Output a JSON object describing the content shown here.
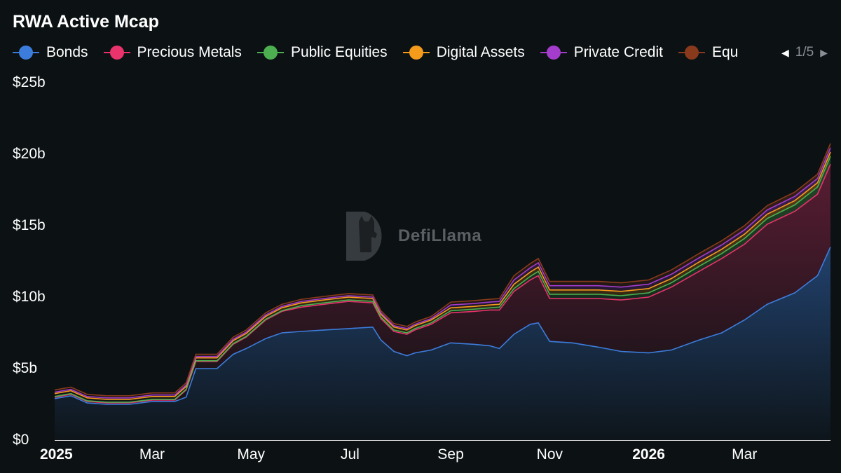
{
  "title": "RWA Active Mcap",
  "legend": {
    "items": [
      {
        "label": "Bonds",
        "color": "#3c7ddc"
      },
      {
        "label": "Precious Metals",
        "color": "#e8336d"
      },
      {
        "label": "Public Equities",
        "color": "#4caf50"
      },
      {
        "label": "Digital Assets",
        "color": "#f59b1c"
      },
      {
        "label": "Private Credit",
        "color": "#a43ccc"
      },
      {
        "label": "Equ",
        "color": "#8a3a1c"
      }
    ],
    "page_indicator": "1/5",
    "prev_icon": "triangle-left-icon",
    "next_icon": "triangle-right-icon"
  },
  "watermark": {
    "text": "DefiLlama",
    "icon": "llama-logo-icon"
  },
  "chart_data": {
    "type": "area",
    "stacked": true,
    "title": "RWA Active Mcap",
    "x_tick_labels": [
      {
        "label": "2025",
        "bold": true,
        "date": "2025-01-01"
      },
      {
        "label": "Mar",
        "bold": false,
        "date": "2025-03-01"
      },
      {
        "label": "May",
        "bold": false,
        "date": "2025-05-01"
      },
      {
        "label": "Jul",
        "bold": false,
        "date": "2025-07-01"
      },
      {
        "label": "Sep",
        "bold": false,
        "date": "2025-09-01"
      },
      {
        "label": "Nov",
        "bold": false,
        "date": "2025-11-01"
      },
      {
        "label": "2026",
        "bold": true,
        "date": "2026-01-01"
      },
      {
        "label": "Mar",
        "bold": false,
        "date": "2026-03-01"
      }
    ],
    "y_tick_labels": [
      "$0",
      "$5b",
      "$10b",
      "$15b",
      "$20b",
      "$25b"
    ],
    "y_ticks": [
      0,
      5,
      10,
      15,
      20,
      25
    ],
    "ylim": [
      0,
      25
    ],
    "y_unit": "billion USD",
    "x_range": [
      "2024-12-31",
      "2026-04-23"
    ],
    "grid": false,
    "legend_position": "top",
    "x": [
      "2024-12-31",
      "2025-01-10",
      "2025-01-20",
      "2025-02-01",
      "2025-02-15",
      "2025-03-01",
      "2025-03-15",
      "2025-03-22",
      "2025-03-28",
      "2025-04-10",
      "2025-04-20",
      "2025-04-28",
      "2025-05-10",
      "2025-05-20",
      "2025-06-01",
      "2025-06-15",
      "2025-06-30",
      "2025-07-15",
      "2025-07-20",
      "2025-07-28",
      "2025-08-05",
      "2025-08-10",
      "2025-08-20",
      "2025-09-01",
      "2025-09-15",
      "2025-09-25",
      "2025-10-01",
      "2025-10-10",
      "2025-10-20",
      "2025-10-25",
      "2025-11-01",
      "2025-11-15",
      "2025-12-01",
      "2025-12-15",
      "2026-01-01",
      "2026-01-15",
      "2026-02-01",
      "2026-02-15",
      "2026-03-01",
      "2026-03-15",
      "2026-04-01",
      "2026-04-15",
      "2026-04-23"
    ],
    "series": [
      {
        "name": "Bonds",
        "color": "#3c7ddc",
        "values": [
          2.9,
          3.1,
          2.6,
          2.5,
          2.5,
          2.7,
          2.7,
          3.0,
          5.0,
          5.0,
          6.0,
          6.4,
          7.1,
          7.5,
          7.6,
          7.7,
          7.8,
          7.9,
          7.0,
          6.2,
          5.9,
          6.1,
          6.3,
          6.8,
          6.7,
          6.6,
          6.4,
          7.4,
          8.1,
          8.2,
          6.9,
          6.8,
          6.5,
          6.2,
          6.1,
          6.3,
          7.0,
          7.5,
          8.4,
          9.5,
          10.3,
          11.5,
          13.5
        ]
      },
      {
        "name": "Precious Metals",
        "color": "#e8336d",
        "values": [
          0.1,
          0.1,
          0.1,
          0.1,
          0.1,
          0.1,
          0.1,
          0.5,
          0.5,
          0.5,
          0.7,
          0.8,
          1.3,
          1.5,
          1.7,
          1.8,
          1.9,
          1.7,
          1.5,
          1.4,
          1.5,
          1.6,
          1.8,
          2.1,
          2.3,
          2.5,
          2.7,
          3.0,
          3.1,
          3.3,
          3.0,
          3.1,
          3.4,
          3.6,
          3.9,
          4.4,
          4.8,
          5.2,
          5.3,
          5.6,
          5.7,
          5.7,
          5.8
        ]
      },
      {
        "name": "Public Equities",
        "color": "#4caf50",
        "values": [
          0.05,
          0.05,
          0.05,
          0.05,
          0.05,
          0.05,
          0.05,
          0.05,
          0.05,
          0.05,
          0.05,
          0.05,
          0.05,
          0.05,
          0.1,
          0.1,
          0.1,
          0.1,
          0.1,
          0.1,
          0.1,
          0.1,
          0.1,
          0.15,
          0.15,
          0.15,
          0.2,
          0.2,
          0.25,
          0.3,
          0.3,
          0.3,
          0.3,
          0.3,
          0.3,
          0.3,
          0.35,
          0.35,
          0.4,
          0.4,
          0.45,
          0.5,
          0.55
        ]
      },
      {
        "name": "Digital Assets",
        "color": "#f59b1c",
        "values": [
          0.2,
          0.2,
          0.2,
          0.2,
          0.2,
          0.2,
          0.2,
          0.2,
          0.2,
          0.2,
          0.2,
          0.2,
          0.2,
          0.2,
          0.2,
          0.2,
          0.2,
          0.2,
          0.2,
          0.2,
          0.2,
          0.2,
          0.2,
          0.2,
          0.2,
          0.2,
          0.2,
          0.3,
          0.3,
          0.3,
          0.3,
          0.3,
          0.3,
          0.3,
          0.3,
          0.3,
          0.3,
          0.3,
          0.3,
          0.3,
          0.3,
          0.3,
          0.3
        ]
      },
      {
        "name": "Private Credit",
        "color": "#a43ccc",
        "values": [
          0.1,
          0.1,
          0.1,
          0.1,
          0.1,
          0.1,
          0.1,
          0.1,
          0.1,
          0.1,
          0.1,
          0.1,
          0.1,
          0.1,
          0.1,
          0.1,
          0.1,
          0.1,
          0.1,
          0.1,
          0.1,
          0.1,
          0.1,
          0.2,
          0.2,
          0.2,
          0.2,
          0.3,
          0.3,
          0.3,
          0.3,
          0.3,
          0.3,
          0.3,
          0.3,
          0.3,
          0.3,
          0.3,
          0.3,
          0.3,
          0.3,
          0.3,
          0.3
        ]
      },
      {
        "name": "Equ",
        "color": "#8a3a1c",
        "values": [
          0.15,
          0.15,
          0.15,
          0.15,
          0.15,
          0.15,
          0.15,
          0.15,
          0.15,
          0.15,
          0.15,
          0.15,
          0.15,
          0.15,
          0.15,
          0.15,
          0.15,
          0.15,
          0.15,
          0.15,
          0.15,
          0.15,
          0.15,
          0.2,
          0.2,
          0.2,
          0.2,
          0.3,
          0.3,
          0.3,
          0.3,
          0.3,
          0.3,
          0.3,
          0.3,
          0.3,
          0.3,
          0.3,
          0.3,
          0.3,
          0.3,
          0.3,
          0.3
        ]
      }
    ]
  }
}
